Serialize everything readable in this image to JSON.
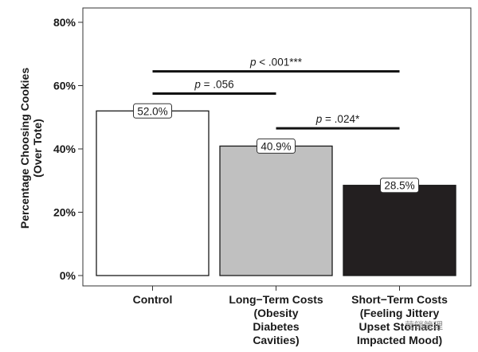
{
  "chart_data": {
    "type": "bar",
    "title": "",
    "xlabel": "",
    "ylabel": [
      "Percentage Choosing Cookies",
      "(Over Tote)"
    ],
    "ylim": [
      0,
      80
    ],
    "yticks": [
      {
        "value": 0,
        "label": "0%"
      },
      {
        "value": 20,
        "label": "20%"
      },
      {
        "value": 40,
        "label": "40%"
      },
      {
        "value": 60,
        "label": "60%"
      },
      {
        "value": 80,
        "label": "80%"
      }
    ],
    "categories": [
      {
        "lines": [
          "Control"
        ]
      },
      {
        "lines": [
          "Long−Term Costs",
          "(Obesity",
          "Diabetes",
          "Cavities)"
        ]
      },
      {
        "lines": [
          "Short−Term Costs",
          "(Feeling Jittery",
          "Upset Stomach",
          "Impacted Mood)"
        ]
      }
    ],
    "values": [
      52.0,
      40.9,
      28.5
    ],
    "value_labels": [
      "52.0%",
      "40.9%",
      "28.5%"
    ],
    "colors": [
      "#ffffff",
      "#c0c0c0",
      "#231f20"
    ],
    "significance": [
      {
        "from": 0,
        "to": 1,
        "level": 57.5,
        "label_p": "p",
        "label_rest": " = .056"
      },
      {
        "from": 0,
        "to": 2,
        "level": 64.5,
        "label_p": "p",
        "label_rest": " < .001***"
      },
      {
        "from": 1,
        "to": 2,
        "level": 46.5,
        "label_p": "p",
        "label_rest": " = .024*"
      }
    ],
    "grid": false,
    "legend": "none"
  },
  "watermark": "营销管理"
}
